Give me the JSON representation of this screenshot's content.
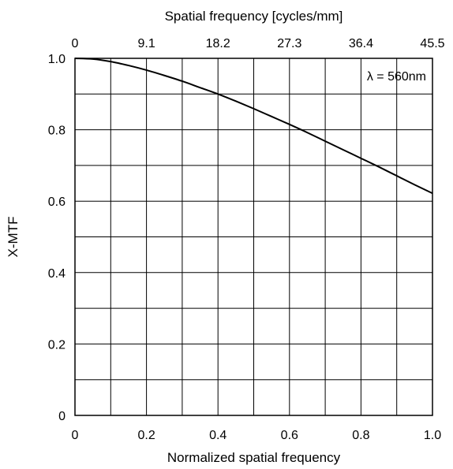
{
  "chart_data": {
    "type": "line",
    "title": "",
    "xlabel": "Normalized spatial frequency",
    "ylabel": "X-MTF",
    "x2label": "Spatial frequency [cycles/mm]",
    "xlim": [
      0,
      1
    ],
    "ylim": [
      0,
      1
    ],
    "grid": true,
    "x_ticks": [
      {
        "value": 0,
        "label": "0"
      },
      {
        "value": 0.2,
        "label": "0.2"
      },
      {
        "value": 0.4,
        "label": "0.4"
      },
      {
        "value": 0.6,
        "label": "0.6"
      },
      {
        "value": 0.8,
        "label": "0.8"
      },
      {
        "value": 1.0,
        "label": "1.0"
      }
    ],
    "x_minor_grid": [
      0.1,
      0.3,
      0.5,
      0.7,
      0.9
    ],
    "x2_ticks": [
      {
        "value": 0,
        "label": "0"
      },
      {
        "value": 0.2,
        "label": "9.1"
      },
      {
        "value": 0.4,
        "label": "18.2"
      },
      {
        "value": 0.6,
        "label": "27.3"
      },
      {
        "value": 0.8,
        "label": "36.4"
      },
      {
        "value": 1.0,
        "label": "45.5"
      }
    ],
    "y_ticks": [
      {
        "value": 0,
        "label": "0"
      },
      {
        "value": 0.2,
        "label": "0.2"
      },
      {
        "value": 0.4,
        "label": "0.4"
      },
      {
        "value": 0.6,
        "label": "0.6"
      },
      {
        "value": 0.8,
        "label": "0.8"
      },
      {
        "value": 1.0,
        "label": "1.0"
      }
    ],
    "y_minor_grid": [
      0.1,
      0.3,
      0.5,
      0.7,
      0.9
    ],
    "annotation": "λ = 560nm",
    "series": [
      {
        "color": "#000000",
        "x": [
          0,
          0.05,
          0.1,
          0.15,
          0.2,
          0.25,
          0.3,
          0.35,
          0.4,
          0.45,
          0.5,
          0.55,
          0.6,
          0.65,
          0.7,
          0.75,
          0.8,
          0.85,
          0.9,
          0.95,
          1.0
        ],
        "y": [
          1.0,
          0.998,
          0.991,
          0.98,
          0.967,
          0.952,
          0.936,
          0.918,
          0.9,
          0.88,
          0.859,
          0.837,
          0.815,
          0.792,
          0.768,
          0.744,
          0.72,
          0.696,
          0.671,
          0.646,
          0.622
        ]
      }
    ]
  }
}
